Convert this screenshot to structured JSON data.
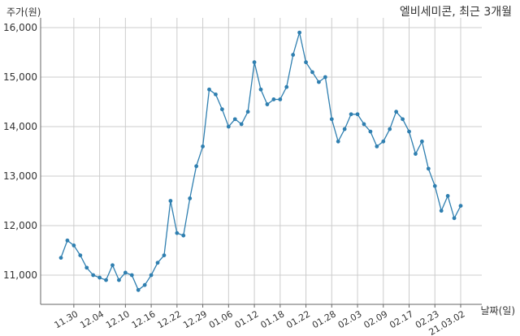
{
  "chart_data": {
    "type": "line",
    "title": "엘비세미콘, 최근 3개월",
    "ylabel": "주가(원)",
    "xlabel": "날짜(일)",
    "ylim": [
      10400,
      16100
    ],
    "yticks": [
      "11,000",
      "12,000",
      "13,000",
      "14,000",
      "15,000",
      "16,000"
    ],
    "ytick_values": [
      11000,
      12000,
      13000,
      14000,
      15000,
      16000
    ],
    "xtick_labels": [
      "11.30",
      "12.04",
      "12.10",
      "12.16",
      "12.22",
      "12.29",
      "01.06",
      "01.12",
      "01.18",
      "01.22",
      "01.28",
      "02.03",
      "02.09",
      "02.17",
      "02.23",
      "21.03.02"
    ],
    "xtick_indices": [
      2,
      6,
      10,
      14,
      18,
      22,
      26,
      30,
      34,
      38,
      42,
      46,
      50,
      54,
      58,
      62
    ],
    "grid": true,
    "series": [
      {
        "values": [
          11350,
          11700,
          11600,
          11400,
          11150,
          11000,
          10950,
          10900,
          11200,
          10900,
          11050,
          11000,
          10700,
          10800,
          11000,
          11250,
          11400,
          12500,
          11850,
          11800,
          12550,
          13200,
          13600,
          14750,
          14650,
          14350,
          14000,
          14150,
          14050,
          14300,
          15300,
          14750,
          14450,
          14550,
          14550,
          14800,
          15450,
          15900,
          15300,
          15100,
          14900,
          15000,
          14150,
          13700,
          13950,
          14250,
          14250,
          14050,
          13900,
          13600,
          13700,
          13950,
          14300,
          14150,
          13900,
          13450,
          13700,
          13150,
          12800,
          12300,
          12600,
          12150,
          12400
        ]
      }
    ],
    "colors": {
      "line": "#2f7fb0",
      "grid": "#cccccc",
      "axis": "#666666",
      "text": "#333333"
    }
  }
}
